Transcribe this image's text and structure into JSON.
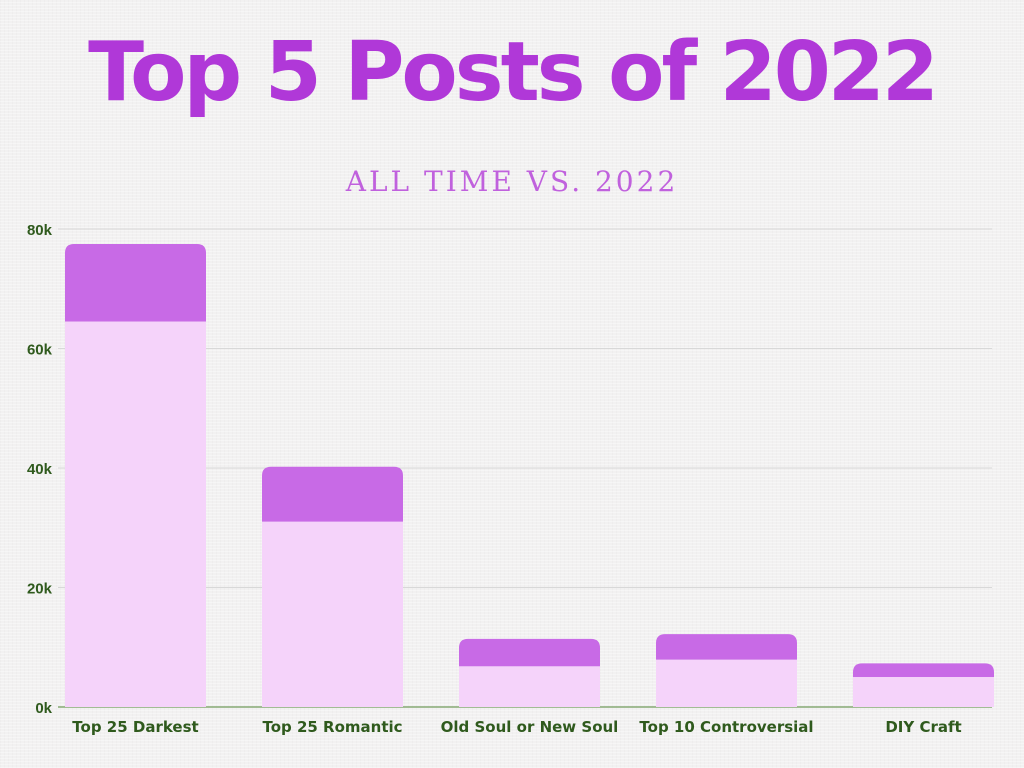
{
  "page": {
    "title": "Top 5 Posts of 2022",
    "subtitle": "ALL TIME VS. 2022"
  },
  "colors": {
    "title": "#b038d8",
    "subtitle": "#c061dd",
    "axis_text": "#2f5a1d",
    "baseline": "#6f9a5a",
    "gridline": "#d8d8d8",
    "series_2022": "#f5d3fa",
    "series_all_time_extra": "#c86ae6"
  },
  "chart_data": {
    "type": "bar",
    "stacked": true,
    "title": "Top 5 Posts of 2022",
    "subtitle": "ALL TIME VS. 2022",
    "xlabel": "",
    "ylabel": "",
    "categories": [
      "Top 25 Darkest",
      "Top 25 Romantic",
      "Old Soul or New Soul",
      "Top 10 Controversial",
      "DIY Craft"
    ],
    "series": [
      {
        "values": [
          64500,
          31000,
          6800,
          7900,
          5000
        ]
      },
      {
        "values": [
          13000,
          9200,
          4600,
          4300,
          2300
        ]
      }
    ],
    "totals": [
      77500,
      40200,
      11400,
      12200,
      7300
    ],
    "ylim": [
      0,
      80000
    ],
    "yticks": [
      0,
      20000,
      40000,
      60000,
      80000
    ],
    "ytick_labels": [
      "0k",
      "20k",
      "40k",
      "60k",
      "80k"
    ],
    "grid": true,
    "legend": "none"
  }
}
